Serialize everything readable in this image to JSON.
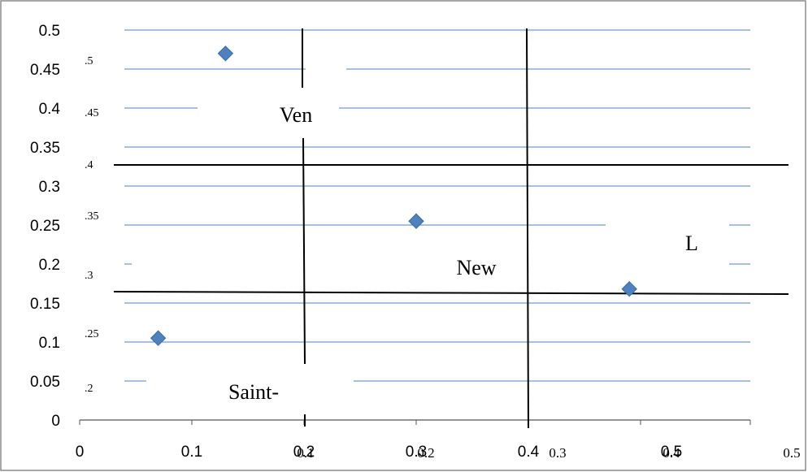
{
  "chart_data": {
    "type": "scatter",
    "title": "",
    "xlabel": "",
    "ylabel": "",
    "xlim": [
      0,
      0.6
    ],
    "ylim": [
      0,
      0.5
    ],
    "grid": true,
    "legend": "none",
    "point_color": "#4f81bd",
    "gridline_color": "#4f81bd",
    "x_ticks": [
      "0",
      "0.1",
      "0.2",
      "0.3",
      "0.4",
      "0.5"
    ],
    "y_ticks": [
      "0",
      "0.05",
      "0.1",
      "0.15",
      "0.2",
      "0.25",
      "0.3",
      "0.35",
      "0.4",
      "0.45",
      "0.5"
    ],
    "series": [
      {
        "points": [
          {
            "x": 0.07,
            "y": 0.105
          },
          {
            "x": 0.13,
            "y": 0.47
          },
          {
            "x": 0.3,
            "y": 0.255
          },
          {
            "x": 0.49,
            "y": 0.168
          }
        ]
      }
    ],
    "overlay": {
      "old_x_ticks": [
        "0.1",
        "0.2",
        "0.3",
        "0.4",
        "0.5"
      ],
      "old_y_ticks": [
        ".2",
        ".25",
        ".3",
        ".35",
        ".4",
        ".45",
        ".5"
      ],
      "region_labels": [
        "Ven",
        "New",
        "L",
        "Saint-"
      ]
    }
  }
}
